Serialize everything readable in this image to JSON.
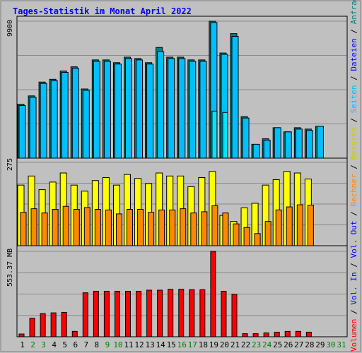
{
  "title": "Tages-Statistik im Monat April 2022",
  "colors": {
    "background": "#c0c0c0",
    "panel_border": "#000000",
    "gridline": "#8a8a8a",
    "title": "#0000ff",
    "hits": "#008080",
    "files": "#00bfff",
    "pages": "#00e5ff",
    "visits": "#ffff00",
    "sites": "#ff8800",
    "kbytes": "#ff0000",
    "weekday_label": "#000000",
    "weekend_label": "#008000"
  },
  "right_labels": {
    "hits": "Anfragen",
    "files": "Dateien",
    "pages": "Seiten",
    "visits": "Besuche",
    "sites": "Rechner",
    "kbytes": "Vol. In"
  },
  "chart_data": [
    {
      "type": "bar",
      "categories": [
        "1",
        "2",
        "3",
        "4",
        "5",
        "6",
        "7",
        "8",
        "9",
        "10",
        "11",
        "12",
        "13",
        "14",
        "15",
        "16",
        "17",
        "18",
        "19",
        "20",
        "21",
        "22",
        "23",
        "24",
        "25",
        "26",
        "27",
        "28",
        "29",
        "30",
        "31"
      ],
      "ylabel": "9900",
      "ylim": [
        0,
        9900
      ],
      "grid": true,
      "series": [
        {
          "name": "Anfragen",
          "values": [
            3900,
            4500,
            5500,
            5700,
            6300,
            6600,
            5000,
            7100,
            7100,
            6900,
            7300,
            7200,
            6900,
            8000,
            7300,
            7300,
            7100,
            7100,
            9900,
            7600,
            9000,
            3000,
            1000,
            1400,
            2200,
            1900,
            2200,
            2100,
            2300,
            0,
            0
          ]
        },
        {
          "name": "Dateien",
          "values": [
            3800,
            4400,
            5400,
            5600,
            6200,
            6500,
            4900,
            7000,
            7000,
            6800,
            7200,
            7100,
            6800,
            7700,
            7200,
            7200,
            7000,
            7000,
            9800,
            7500,
            8800,
            2900,
            1000,
            1300,
            2200,
            1900,
            2100,
            2000,
            2300,
            0,
            0
          ]
        },
        {
          "name": "Seiten",
          "values": [
            0,
            0,
            0,
            0,
            0,
            0,
            0,
            0,
            0,
            0,
            0,
            0,
            0,
            0,
            0,
            0,
            0,
            0,
            3400,
            3300,
            0,
            0,
            0,
            0,
            0,
            0,
            0,
            0,
            0,
            0,
            0
          ]
        }
      ]
    },
    {
      "type": "bar",
      "categories": [
        "1",
        "2",
        "3",
        "4",
        "5",
        "6",
        "7",
        "8",
        "9",
        "10",
        "11",
        "12",
        "13",
        "14",
        "15",
        "16",
        "17",
        "18",
        "19",
        "20",
        "21",
        "22",
        "23",
        "24",
        "25",
        "26",
        "27",
        "28",
        "29",
        "30",
        "31"
      ],
      "ylabel": "275",
      "ylim": [
        0,
        275
      ],
      "grid": true,
      "series": [
        {
          "name": "Besuche",
          "values": [
            200,
            230,
            185,
            210,
            240,
            200,
            180,
            215,
            225,
            200,
            235,
            222,
            205,
            240,
            230,
            230,
            195,
            225,
            245,
            100,
            80,
            125,
            140,
            200,
            218,
            245,
            240,
            220,
            0,
            0,
            0
          ]
        },
        {
          "name": "Rechner",
          "values": [
            110,
            122,
            108,
            120,
            130,
            120,
            126,
            120,
            118,
            105,
            120,
            120,
            110,
            118,
            118,
            122,
            108,
            112,
            132,
            108,
            72,
            60,
            40,
            80,
            118,
            128,
            135,
            134,
            0,
            0,
            0
          ]
        }
      ]
    },
    {
      "type": "bar",
      "categories": [
        "1",
        "2",
        "3",
        "4",
        "5",
        "6",
        "7",
        "8",
        "9",
        "10",
        "11",
        "12",
        "13",
        "14",
        "15",
        "16",
        "17",
        "18",
        "19",
        "20",
        "21",
        "22",
        "23",
        "24",
        "25",
        "26",
        "27",
        "28",
        "29",
        "30",
        "31"
      ],
      "ylabel": "553.37 MB",
      "ylim": [
        0,
        553.37
      ],
      "grid": true,
      "series": [
        {
          "name": "Vol. In",
          "values": [
            18,
            120,
            150,
            155,
            158,
            35,
            285,
            295,
            295,
            295,
            295,
            295,
            302,
            302,
            308,
            308,
            305,
            305,
            553,
            295,
            275,
            20,
            20,
            25,
            30,
            35,
            35,
            30,
            0,
            0,
            0
          ]
        }
      ]
    }
  ]
}
